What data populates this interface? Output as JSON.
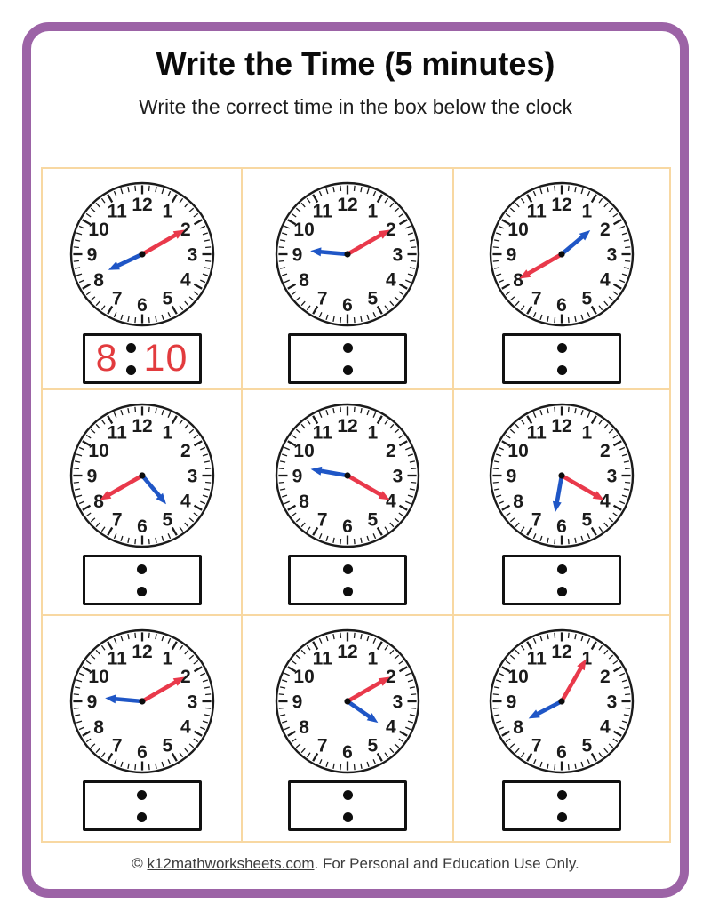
{
  "header": {
    "title": "Write the Time (5 minutes)",
    "subtitle": "Write the correct time in the box below the clock"
  },
  "footer": {
    "copyright_prefix": "© ",
    "site_link": "k12mathworksheets.com",
    "suffix": ". For Personal and Education Use Only."
  },
  "colors": {
    "border_purple": "#9c63a6",
    "grid_orange": "#f8d8a2",
    "minute_hand_red": "#e9394b",
    "hour_hand_blue": "#1f56c6",
    "answer_red": "#e23b3e",
    "clock_ink": "#1b1b1b"
  },
  "clocks": [
    {
      "hour": 8,
      "minute": 10,
      "answered": true,
      "answer_hour": "8",
      "answer_minute": "10"
    },
    {
      "hour": 9,
      "minute": 10,
      "answered": false,
      "answer_hour": "",
      "answer_minute": ""
    },
    {
      "hour": 1,
      "minute": 40,
      "answered": false,
      "answer_hour": "",
      "answer_minute": ""
    },
    {
      "hour": 4,
      "minute": 40,
      "answered": false,
      "answer_hour": "",
      "answer_minute": ""
    },
    {
      "hour": 9,
      "minute": 20,
      "answered": false,
      "answer_hour": "",
      "answer_minute": ""
    },
    {
      "hour": 6,
      "minute": 20,
      "answered": false,
      "answer_hour": "",
      "answer_minute": ""
    },
    {
      "hour": 9,
      "minute": 10,
      "answered": false,
      "answer_hour": "",
      "answer_minute": ""
    },
    {
      "hour": 4,
      "minute": 10,
      "answered": false,
      "answer_hour": "",
      "answer_minute": ""
    },
    {
      "hour": 8,
      "minute": 5,
      "answered": false,
      "answer_hour": "",
      "answer_minute": ""
    }
  ]
}
